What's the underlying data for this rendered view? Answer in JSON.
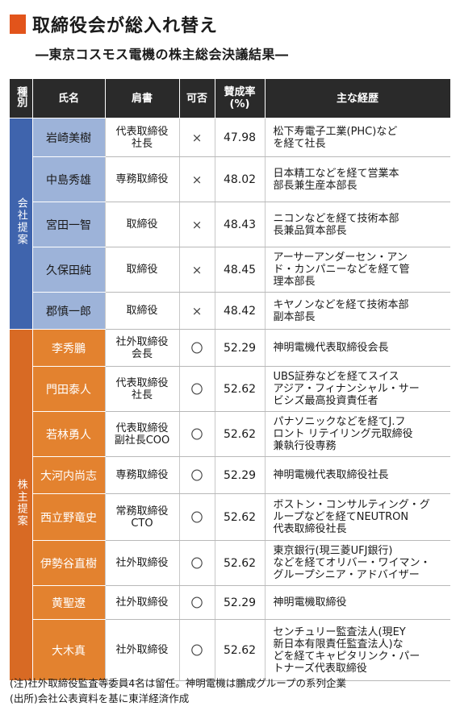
{
  "title": "取締役会が総入れ替え",
  "subtitle": "―東京コスモス電機の株主総会決議結果―",
  "headers": {
    "category": "種別",
    "name": "氏名",
    "position": "肩書",
    "vote": "可否",
    "approval": "賛成率\n(%)",
    "career": "主な経歴"
  },
  "groups": {
    "company": "会社提案",
    "shareholder": "株主提案"
  },
  "colors": {
    "title_mark": "#e2541b",
    "company_category": "#3f64ad",
    "company_name_bg": "#9db3d9",
    "shareholder_category": "#d86a24",
    "shareholder_name_bg": "#e3822f",
    "header_bg": "#2a2a2a"
  },
  "rows": [
    {
      "name": "岩崎美樹",
      "position": "代表取締役\n社長",
      "vote": "×",
      "rate": "47.98",
      "career": "松下寿電子工業(PHC)など\nを経て社長"
    },
    {
      "name": "中島秀雄",
      "position": "専務取締役",
      "vote": "×",
      "rate": "48.02",
      "career": "日本精工などを経て営業本\n部長兼生産本部長"
    },
    {
      "name": "宮田一智",
      "position": "取締役",
      "vote": "×",
      "rate": "48.43",
      "career": "ニコンなどを経て技術本部\n長兼品質本部長"
    },
    {
      "name": "久保田純",
      "position": "取締役",
      "vote": "×",
      "rate": "48.45",
      "career": "アーサーアンダーセン・アン\nド・カンパニーなどを経て管\n理本部長"
    },
    {
      "name": "郡慎一郎",
      "position": "取締役",
      "vote": "×",
      "rate": "48.42",
      "career": "キヤノンなどを経て技術本部\n副本部長"
    },
    {
      "name": "李秀鵬",
      "position": "社外取締役\n会長",
      "vote": "〇",
      "rate": "52.29",
      "career": "神明電機代表取締役会長"
    },
    {
      "name": "門田泰人",
      "position": "代表取締役\n社長",
      "vote": "〇",
      "rate": "52.62",
      "career": "UBS証券などを経てスイス\nアジア・フィナンシャル・サー\nビシズ最高投資責任者"
    },
    {
      "name": "若林勇人",
      "position": "代表取締役\n副社長COO",
      "vote": "〇",
      "rate": "52.62",
      "career": "パナソニックなどを経てJ.フ\nロント リテイリング元取締役\n兼執行役専務"
    },
    {
      "name": "大河内尚志",
      "position": "専務取締役",
      "vote": "〇",
      "rate": "52.29",
      "career": "神明電機代表取締役社長"
    },
    {
      "name": "西立野竜史",
      "position": "常務取締役\nCTO",
      "vote": "〇",
      "rate": "52.62",
      "career": "ボストン・コンサルティング・グ\nループなどを経てNEUTRON\n代表取締役社長"
    },
    {
      "name": "伊勢谷直樹",
      "position": "社外取締役",
      "vote": "〇",
      "rate": "52.62",
      "career": "東京銀行(現三菱UFJ銀行)\nなどを経てオリバー・ワイマン・\nグループシニア・アドバイザー"
    },
    {
      "name": "黄聖遼",
      "position": "社外取締役",
      "vote": "〇",
      "rate": "52.29",
      "career": "神明電機取締役"
    },
    {
      "name": "大木真",
      "position": "社外取締役",
      "vote": "〇",
      "rate": "52.62",
      "career": "センチュリー監査法人(現EY\n新日本有限責任監査法人)な\nどを経てキャピタリンク・パー\nトナーズ代表取締役"
    }
  ],
  "notes": [
    "(注)社外取締役監査等委員4名は留任。神明電機は鵬成グループの系列企業",
    "(出所)会社公表資料を基に東洋経済作成"
  ]
}
